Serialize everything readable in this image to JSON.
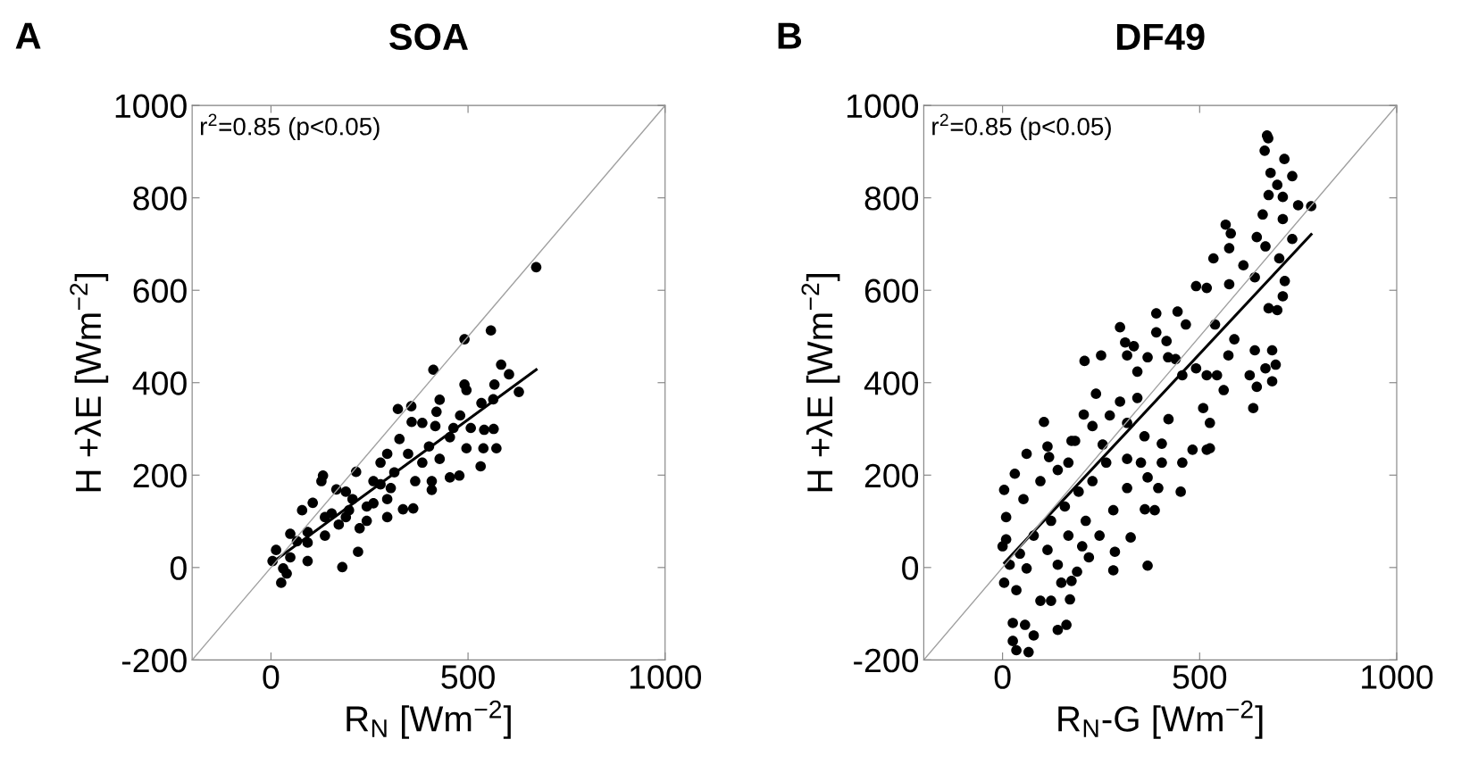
{
  "chart_data": [
    {
      "type": "scatter",
      "title": "SOA",
      "xlabel": "R$_{N}$ [Wm$^{−2}$]",
      "ylabel": "H +λE [Wm$^{−2}$]",
      "annotations": [
        "A",
        "r$^{2}$=0.85 (p<0.05)"
      ],
      "xlim": [
        -200,
        1000
      ],
      "ylim": [
        -200,
        1000
      ],
      "xticks": [
        0,
        500,
        1000
      ],
      "yticks": [
        -200,
        0,
        200,
        400,
        600,
        800,
        1000
      ],
      "grid": false,
      "legend": false,
      "marker": "circle",
      "series": [
        {
          "color": "#000000",
          "x": [
            673,
            491,
            558,
            412,
            584,
            604,
            567,
            491,
            629,
            496,
            428,
            534,
            564,
            322,
            356,
            480,
            357,
            384,
            463,
            507,
            541,
            565,
            417,
            496,
            539,
            572,
            532,
            454,
            478,
            408,
            408,
            326,
            295,
            348,
            401,
            278,
            313,
            260,
            216,
            132,
            128,
            166,
            190,
            207,
            243,
            295,
            335,
            361,
            295,
            366,
            106,
            79,
            154,
            225,
            243,
            221,
            181,
            137,
            93,
            49,
            66,
            93,
            13,
            4,
            26,
            40,
            49,
            31,
            172,
            190,
            260,
            304,
            278,
            384,
            428,
            454,
            420,
            93,
            137,
            198
          ],
          "values": [
            650,
            494,
            513,
            428,
            439,
            418,
            396,
            396,
            380,
            384,
            363,
            356,
            364,
            343,
            349,
            329,
            315,
            313,
            302,
            302,
            298,
            300,
            306,
            258,
            258,
            258,
            219,
            195,
            199,
            187,
            168,
            278,
            246,
            246,
            262,
            227,
            206,
            187,
            207,
            199,
            187,
            169,
            164,
            148,
            132,
            109,
            126,
            128,
            148,
            187,
            140,
            124,
            117,
            85,
            101,
            34,
            1,
            69,
            77,
            73,
            57,
            14,
            38,
            14,
            -33,
            -13,
            22,
            -2,
            93,
            109,
            139,
            172,
            180,
            227,
            235,
            282,
            337,
            54,
            109,
            124
          ]
        },
        {
          "type": "line",
          "color": "#000000",
          "marker": "none",
          "x": [
            5,
            673
          ],
          "values": [
            12,
            428
          ]
        },
        {
          "type": "line",
          "color": "#a0a0a0",
          "marker": "none",
          "x": [
            -200,
            1000
          ],
          "values": [
            -200,
            1000
          ]
        }
      ]
    },
    {
      "type": "scatter",
      "title": "DF49",
      "xlabel": "R$_{N}$-G [Wm$^{−2}$]",
      "ylabel": "H +λE [Wm$^{−2}$]",
      "annotations": [
        "B",
        "r$^{2}$=0.85 (p<0.05)"
      ],
      "xlim": [
        -200,
        1000
      ],
      "ylim": [
        -200,
        1000
      ],
      "xticks": [
        0,
        500,
        1000
      ],
      "yticks": [
        -200,
        0,
        200,
        400,
        600,
        800,
        1000
      ],
      "grid": false,
      "legend": false,
      "marker": "circle",
      "series": [
        {
          "color": "#000000",
          "x": [
            671,
            674,
            665,
            715,
            680,
            735,
            697,
            783,
            675,
            711,
            750,
            660,
            711,
            566,
            579,
            645,
            735,
            575,
            667,
            535,
            611,
            702,
            716,
            711,
            491,
            518,
            575,
            640,
            675,
            697,
            390,
            444,
            298,
            311,
            333,
            316,
            250,
            208,
            390,
            416,
            420,
            439,
            465,
            539,
            588,
            640,
            684,
            573,
            627,
            667,
            693,
            684,
            645,
            636,
            342,
            368,
            456,
            491,
            518,
            544,
            561,
            509,
            526,
            518,
            482,
            421,
            404,
            360,
            316,
            298,
            342,
            272,
            237,
            206,
            105,
            61,
            114,
            118,
            175,
            228,
            254,
            316,
            368,
            395,
            452,
            361,
            386,
            325,
            285,
            281,
            368,
            219,
            189,
            175,
            149,
            171,
            123,
            96,
            26,
            57,
            79,
            26,
            35,
            66,
            140,
            162,
            4,
            4,
            31,
            9,
            9,
            53,
            96,
            140,
            167,
            184,
            44,
            79,
            123,
            158,
            193,
            228,
            263,
            61,
            114,
            167,
            211,
            246,
            202,
            140,
            35,
            281,
            316,
            351,
            404,
            456,
            526,
            0,
            18
          ],
          "values": [
            935,
            929,
            902,
            884,
            854,
            847,
            828,
            782,
            806,
            802,
            784,
            764,
            754,
            742,
            723,
            715,
            711,
            691,
            695,
            669,
            654,
            669,
            620,
            587,
            609,
            605,
            613,
            628,
            561,
            557,
            550,
            554,
            520,
            487,
            479,
            459,
            459,
            447,
            509,
            490,
            455,
            451,
            526,
            526,
            494,
            470,
            470,
            459,
            416,
            431,
            439,
            403,
            391,
            345,
            424,
            455,
            416,
            431,
            416,
            416,
            384,
            345,
            313,
            255,
            255,
            321,
            268,
            284,
            313,
            359,
            367,
            329,
            376,
            331,
            315,
            246,
            262,
            239,
            274,
            306,
            266,
            235,
            195,
            172,
            164,
            126,
            124,
            65,
            34,
            -6,
            4,
            22,
            -9,
            -29,
            -33,
            -69,
            -72,
            -72,
            -120,
            -124,
            -147,
            -159,
            -179,
            -183,
            -135,
            -124,
            -33,
            168,
            203,
            109,
            61,
            148,
            187,
            211,
            227,
            274,
            30,
            69,
            101,
            132,
            164,
            187,
            227,
            -2,
            38,
            69,
            101,
            69,
            46,
            6,
            -49,
            124,
            172,
            227,
            227,
            227,
            258,
            46,
            6
          ]
        },
        {
          "type": "line",
          "color": "#000000",
          "marker": "none",
          "x": [
            5,
            783
          ],
          "values": [
            10,
            721
          ]
        },
        {
          "type": "line",
          "color": "#a0a0a0",
          "marker": "none",
          "x": [
            -200,
            1000
          ],
          "values": [
            -200,
            1000
          ]
        }
      ]
    }
  ]
}
